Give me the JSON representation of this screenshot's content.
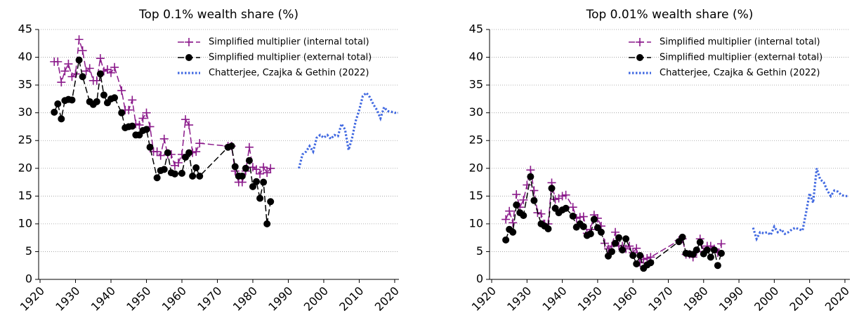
{
  "chart_data": [
    {
      "type": "line",
      "title": "Top 0.1% wealth share (%)",
      "xlim": [
        1919.6,
        2021.2
      ],
      "ylim": [
        0,
        45
      ],
      "xticks": [
        1920,
        1930,
        1940,
        1950,
        1960,
        1970,
        1980,
        1990,
        2000,
        2010,
        2020
      ],
      "yticks": [
        0,
        5,
        10,
        15,
        20,
        25,
        30,
        35,
        40,
        45
      ],
      "grid": true,
      "legend": "upper right",
      "series": [
        {
          "name": "Simplified multiplier (internal total)",
          "color": "#8b1a8b",
          "linestyle": "dashed",
          "marker": "+",
          "x": [
            1924,
            1925,
            1926,
            1927,
            1928,
            1929,
            1930,
            1931,
            1932,
            1933,
            1934,
            1935,
            1936,
            1937,
            1938,
            1939,
            1940,
            1941,
            1943,
            1944,
            1945,
            1946,
            1947,
            1948,
            1949,
            1950,
            1951,
            1952,
            1953,
            1954,
            1955,
            1956,
            1957,
            1958,
            1959,
            1960,
            1961,
            1962,
            1963,
            1964,
            1965,
            1973,
            1974,
            1975,
            1976,
            1977,
            1978,
            1979,
            1980,
            1981,
            1982,
            1983,
            1984,
            1985
          ],
          "values": [
            39.2,
            39.2,
            35.5,
            37.5,
            38.8,
            36.5,
            37,
            43.2,
            41.2,
            37.5,
            38,
            35.8,
            35.8,
            39.8,
            37.5,
            37.8,
            37.2,
            38.2,
            34,
            30.5,
            30.5,
            32.3,
            28,
            27.8,
            29,
            30,
            27.5,
            23,
            23,
            22.3,
            25.3,
            22.5,
            22.5,
            20.5,
            21,
            22.5,
            28.8,
            27.8,
            22.8,
            23,
            24.5,
            24,
            24,
            19.5,
            17.5,
            17.5,
            19.5,
            23.8,
            20.2,
            19.8,
            19,
            20.2,
            19.2,
            20
          ]
        },
        {
          "name": "Simplified multiplier (external total)",
          "color": "#000000",
          "linestyle": "dashed",
          "marker": "o",
          "x": [
            1924,
            1925,
            1926,
            1927,
            1928,
            1929,
            1931,
            1932,
            1934,
            1935,
            1936,
            1937,
            1938,
            1939,
            1940,
            1941,
            1943,
            1944,
            1945,
            1946,
            1947,
            1948,
            1949,
            1950,
            1951,
            1953,
            1954,
            1955,
            1956,
            1957,
            1958,
            1960,
            1961,
            1962,
            1963,
            1964,
            1965,
            1973,
            1974,
            1975,
            1976,
            1977,
            1978,
            1979,
            1980,
            1981,
            1982,
            1983,
            1984,
            1985
          ],
          "values": [
            30.1,
            31.6,
            28.9,
            32.2,
            32.4,
            32.3,
            39.5,
            36.5,
            32,
            31.5,
            32,
            37,
            33.2,
            31.8,
            32.5,
            32.7,
            30,
            27.3,
            27.5,
            27.6,
            26,
            26,
            26.8,
            27,
            23.8,
            18.3,
            19.6,
            19.8,
            22.8,
            19.2,
            19,
            19.1,
            22,
            22.8,
            18.6,
            20.1,
            18.6,
            23.8,
            24,
            20.3,
            18.6,
            18.6,
            20,
            21.4,
            16.7,
            17.6,
            14.6,
            17.5,
            10,
            14
          ]
        },
        {
          "name": "Chatterjee, Czajka & Gethin (2022)",
          "color": "#4169e1",
          "linestyle": "dotted",
          "marker": "none",
          "x": [
            1993,
            1994,
            1995,
            1996,
            1997,
            1998,
            1999,
            2000,
            2001,
            2002,
            2003,
            2004,
            2005,
            2006,
            2007,
            2008,
            2009,
            2010,
            2011,
            2012,
            2013,
            2014,
            2015,
            2016,
            2017,
            2018,
            2019,
            2020,
            2021
          ],
          "values": [
            20,
            22.5,
            23,
            24,
            23,
            25.5,
            26,
            25.5,
            26,
            25.3,
            26,
            25.8,
            28,
            27,
            23.3,
            25.5,
            28.5,
            30.5,
            33,
            33.6,
            32.8,
            31.5,
            30.5,
            29,
            31,
            30.3,
            30.2,
            30,
            30
          ]
        }
      ]
    },
    {
      "type": "line",
      "title": "Top 0.01% wealth share (%)",
      "xlim": [
        1919.4,
        2021.4
      ],
      "ylim": [
        0,
        45
      ],
      "xticks": [
        1920,
        1930,
        1940,
        1950,
        1960,
        1970,
        1980,
        1990,
        2000,
        2010,
        2020
      ],
      "yticks": [
        0,
        5,
        10,
        15,
        20,
        25,
        30,
        35,
        40,
        45
      ],
      "grid": true,
      "legend": "upper right",
      "series": [
        {
          "name": "Simplified multiplier (internal total)",
          "color": "#8b1a8b",
          "linestyle": "dashed",
          "marker": "+",
          "x": [
            1924,
            1925,
            1926,
            1927,
            1928,
            1929,
            1930,
            1931,
            1932,
            1933,
            1934,
            1935,
            1936,
            1937,
            1938,
            1939,
            1940,
            1941,
            1943,
            1944,
            1945,
            1946,
            1947,
            1948,
            1949,
            1950,
            1951,
            1952,
            1953,
            1954,
            1955,
            1956,
            1957,
            1958,
            1959,
            1960,
            1961,
            1962,
            1963,
            1964,
            1965,
            1973,
            1974,
            1975,
            1976,
            1977,
            1978,
            1979,
            1980,
            1981,
            1982,
            1983,
            1984,
            1985
          ],
          "values": [
            10.8,
            12.3,
            10.2,
            15.3,
            13,
            14.3,
            17,
            19.7,
            16,
            12,
            11.8,
            10,
            10,
            17.4,
            14.4,
            14.6,
            15,
            15.2,
            13,
            11,
            11.2,
            11.3,
            8.3,
            9,
            11.6,
            11,
            9.6,
            6.5,
            5.5,
            6,
            8.5,
            6,
            6,
            5.5,
            6,
            4.8,
            5.6,
            3,
            3.6,
            3.8,
            4,
            7,
            7.3,
            4.5,
            4.5,
            4,
            5,
            7.3,
            5,
            6,
            6,
            5.5,
            4.8,
            6.4
          ]
        },
        {
          "name": "Simplified multiplier (external total)",
          "color": "#000000",
          "linestyle": "dashed",
          "marker": "o",
          "x": [
            1924,
            1925,
            1926,
            1927,
            1928,
            1929,
            1931,
            1932,
            1934,
            1935,
            1936,
            1937,
            1938,
            1939,
            1940,
            1941,
            1943,
            1944,
            1945,
            1946,
            1947,
            1948,
            1949,
            1950,
            1951,
            1953,
            1954,
            1955,
            1956,
            1957,
            1958,
            1960,
            1961,
            1962,
            1963,
            1964,
            1965,
            1973,
            1974,
            1975,
            1976,
            1977,
            1978,
            1979,
            1980,
            1981,
            1982,
            1983,
            1984,
            1985
          ],
          "values": [
            7.1,
            9,
            8.5,
            13.4,
            12,
            11.5,
            18.5,
            14.2,
            10,
            9.6,
            9.1,
            16.4,
            12.8,
            12,
            12.5,
            12.8,
            11.4,
            9.4,
            10,
            9.5,
            7.9,
            8.2,
            10.8,
            9.3,
            8.5,
            4.2,
            5,
            6.5,
            7.5,
            5.3,
            7.3,
            4.3,
            2.8,
            4.3,
            2,
            2.6,
            3,
            6.8,
            7.6,
            4.7,
            4.6,
            4.5,
            5.3,
            6.7,
            4.6,
            5.3,
            4,
            5.3,
            2.5,
            4.7
          ]
        },
        {
          "name": "Chatterjee, Czajka & Gethin (2022)",
          "color": "#4169e1",
          "linestyle": "dotted",
          "marker": "none",
          "x": [
            1994,
            1995,
            1996,
            1997,
            1998,
            1999,
            2000,
            2001,
            2002,
            2003,
            2004,
            2005,
            2006,
            2007,
            2008,
            2009,
            2010,
            2011,
            2012,
            2013,
            2014,
            2015,
            2016,
            2017,
            2018,
            2019,
            2020,
            2021
          ],
          "values": [
            9.3,
            7.3,
            8.5,
            8.3,
            8.5,
            8,
            9.5,
            8.5,
            9,
            8.2,
            8.5,
            9,
            9.3,
            9,
            8.8,
            12,
            15.5,
            13.8,
            20,
            18,
            17.5,
            16,
            15,
            16,
            15.8,
            15.2,
            15,
            15
          ]
        }
      ]
    }
  ]
}
